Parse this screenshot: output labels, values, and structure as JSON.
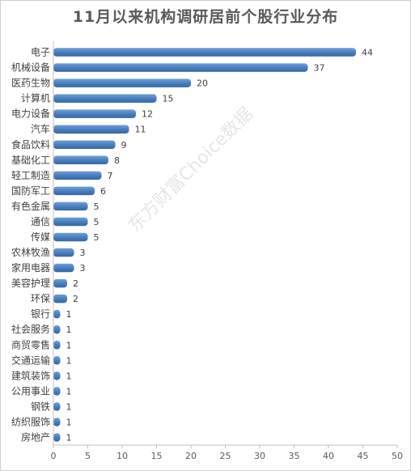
{
  "chart_data": {
    "type": "bar",
    "orientation": "horizontal",
    "title": "11月以来机构调研居前个股行业分布",
    "watermark": "东方财富Choice数据",
    "categories": [
      "电子",
      "机械设备",
      "医药生物",
      "计算机",
      "电力设备",
      "汽车",
      "食品饮料",
      "基础化工",
      "轻工制造",
      "国防军工",
      "有色金属",
      "通信",
      "传媒",
      "农林牧渔",
      "家用电器",
      "美容护理",
      "环保",
      "银行",
      "社会服务",
      "商贸零售",
      "交通运输",
      "建筑装饰",
      "公用事业",
      "钢铁",
      "纺织服饰",
      "房地产"
    ],
    "values": [
      44,
      37,
      20,
      15,
      12,
      11,
      9,
      8,
      7,
      6,
      5,
      5,
      5,
      3,
      3,
      2,
      2,
      1,
      1,
      1,
      1,
      1,
      1,
      1,
      1,
      1
    ],
    "xlim": [
      0,
      50
    ],
    "xticks": [
      0,
      5,
      10,
      15,
      20,
      25,
      30,
      35,
      40,
      45,
      50
    ],
    "bar_color": "#4a7fbf",
    "grid": false,
    "data_labels": true
  }
}
